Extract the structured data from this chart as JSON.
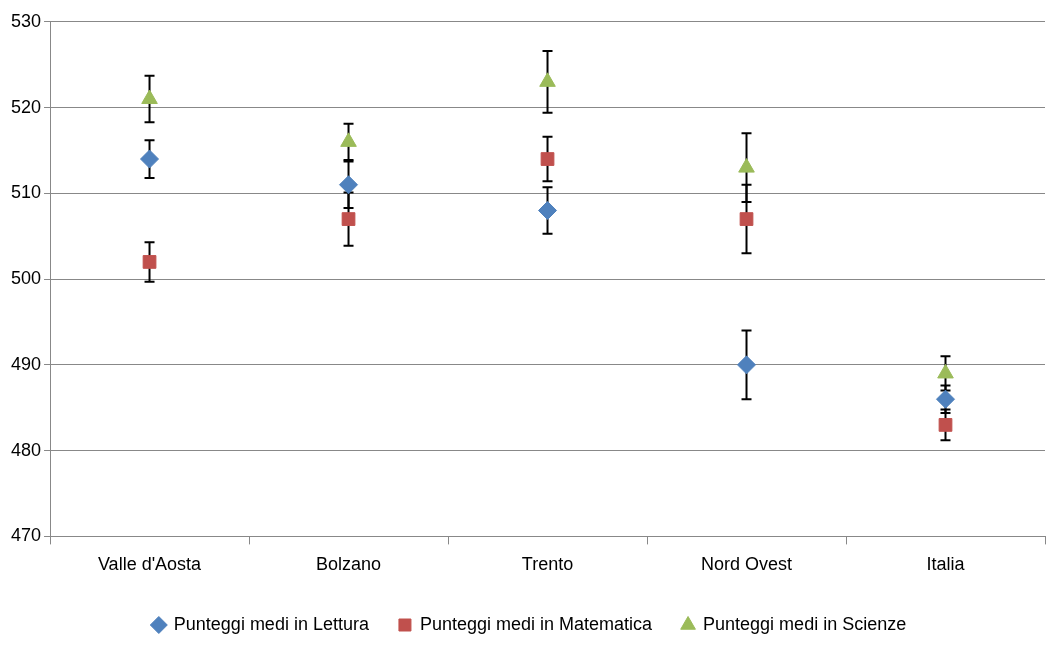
{
  "chart_data": {
    "type": "scatter",
    "categories": [
      "Valle d'Aosta",
      "Bolzano",
      "Trento",
      "Nord Ovest",
      "Italia"
    ],
    "series": [
      {
        "name": "Punteggi medi in Lettura",
        "color": "#4f81bd",
        "marker": "diamond",
        "values": [
          514,
          511,
          508,
          490,
          486
        ],
        "errors": [
          2.2,
          2.7,
          2.7,
          4,
          1.6
        ]
      },
      {
        "name": "Punteggi medi in Matematica",
        "color": "#c0504d",
        "marker": "square",
        "values": [
          502,
          507,
          514,
          507,
          483
        ],
        "errors": [
          2.3,
          3.1,
          2.6,
          4,
          1.8
        ]
      },
      {
        "name": "Punteggi medi in Scienze",
        "color": "#9bbb59",
        "marker": "triangle",
        "values": [
          521,
          516,
          523,
          513,
          489
        ],
        "errors": [
          2.7,
          2.1,
          3.6,
          4,
          2
        ]
      }
    ],
    "ylim": [
      470,
      530
    ],
    "yticks": [
      470,
      480,
      490,
      500,
      510,
      520,
      530
    ],
    "grid": "y",
    "legend": "bottom"
  }
}
